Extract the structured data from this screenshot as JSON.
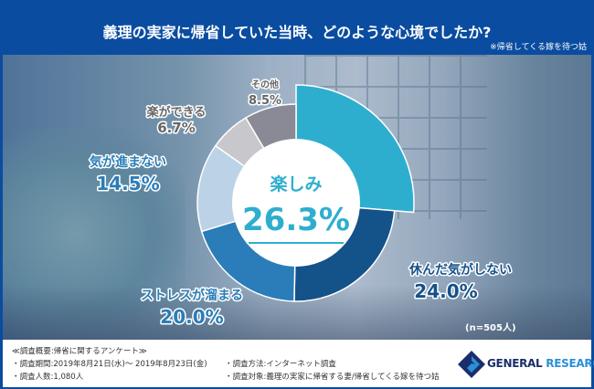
{
  "header": {
    "title": "義理の実家に帰省していた当時、どのような心境でしたか?",
    "subtitle": "※帰省してくる嫁を待つ姑"
  },
  "chart_data": {
    "type": "pie",
    "donut": true,
    "categories": [
      "楽しみ",
      "休んだ気がしない",
      "ストレスが溜まる",
      "気が進まない",
      "楽ができる",
      "その他"
    ],
    "values": [
      26.3,
      24.0,
      20.0,
      14.5,
      6.7,
      8.5
    ],
    "labels": [
      "26.3%",
      "24.0%",
      "20.0%",
      "14.5%",
      "6.7%",
      "8.5%"
    ],
    "colors": [
      "#2eaecf",
      "#14528a",
      "#2a7db8",
      "#bcd2e6",
      "#c8c8cc",
      "#8a8a96"
    ],
    "label_colors": [
      "#2eaecf",
      "#14528a",
      "#2a7db8",
      "#2a7db8",
      "#666666",
      "#666666"
    ],
    "highlight": "楽しみ",
    "sample_note": "(n=505人)"
  },
  "footer": {
    "summary": "≪調査概要:帰省に関するアンケート≫",
    "period": "・調査期間:2019年8月21日(水)～ 2019年8月23日(金)",
    "count": "・調査人数:1,080人",
    "method": "・調査方法:インターネット調査",
    "target": "・調査対象:義理の実家に帰省する妻/帰省してくる嫁を待つ姑",
    "logo_a": "GENERAL",
    "logo_b": "RESEARCH"
  }
}
